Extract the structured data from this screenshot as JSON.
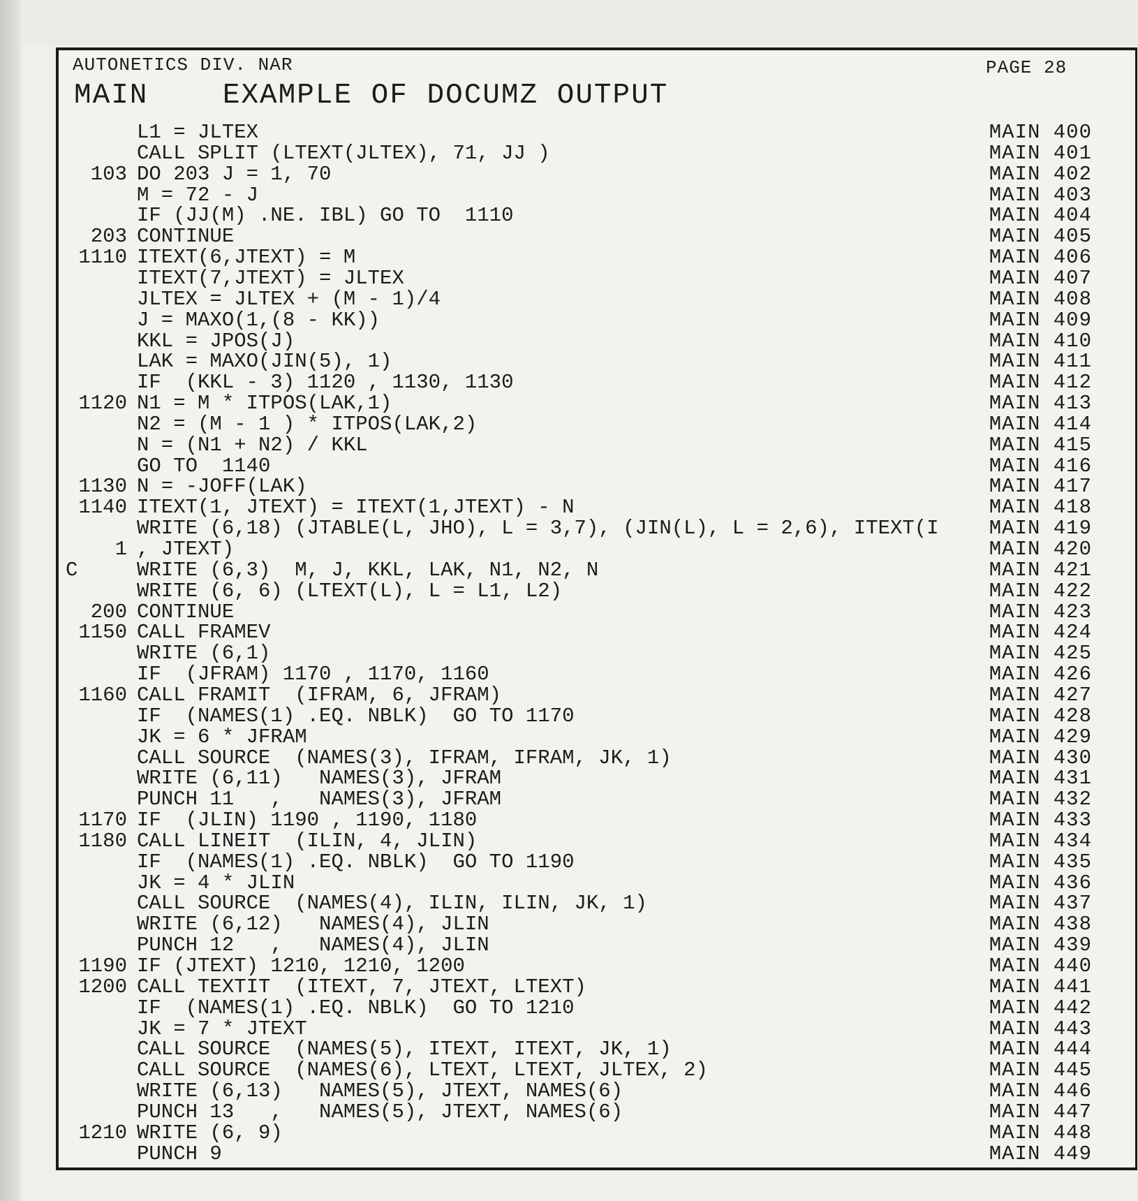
{
  "header": {
    "org": "AUTONETICS DIV. NAR",
    "program": "MAIN",
    "title": "EXAMPLE OF DOCUMZ OUTPUT",
    "page_label": "PAGE",
    "page_number": "28"
  },
  "lines": [
    {
      "label": "",
      "stmt": "L1 = JLTEX",
      "seq": "MAIN 400"
    },
    {
      "label": "",
      "stmt": "CALL SPLIT (LTEXT(JLTEX), 71, JJ )",
      "seq": "MAIN 401"
    },
    {
      "label": "103",
      "stmt": "DO 203 J = 1, 70",
      "seq": "MAIN 402"
    },
    {
      "label": "",
      "stmt": "M = 72 - J",
      "seq": "MAIN 403"
    },
    {
      "label": "",
      "stmt": "IF (JJ(M) .NE. IBL) GO TO  1110",
      "seq": "MAIN 404"
    },
    {
      "label": "203",
      "stmt": "CONTINUE",
      "seq": "MAIN 405"
    },
    {
      "label": "1110",
      "stmt": "ITEXT(6,JTEXT) = M",
      "seq": "MAIN 406"
    },
    {
      "label": "",
      "stmt": "ITEXT(7,JTEXT) = JLTEX",
      "seq": "MAIN 407"
    },
    {
      "label": "",
      "stmt": "JLTEX = JLTEX + (M - 1)/4",
      "seq": "MAIN 408"
    },
    {
      "label": "",
      "stmt": "J = MAXO(1,(8 - KK))",
      "seq": "MAIN 409"
    },
    {
      "label": "",
      "stmt": "KKL = JPOS(J)",
      "seq": "MAIN 410"
    },
    {
      "label": "",
      "stmt": "LAK = MAXO(JIN(5), 1)",
      "seq": "MAIN 411"
    },
    {
      "label": "",
      "stmt": "IF  (KKL - 3) 1120 , 1130, 1130",
      "seq": "MAIN 412"
    },
    {
      "label": "1120",
      "stmt": "N1 = M * ITPOS(LAK,1)",
      "seq": "MAIN 413"
    },
    {
      "label": "",
      "stmt": "N2 = (M - 1 ) * ITPOS(LAK,2)",
      "seq": "MAIN 414"
    },
    {
      "label": "",
      "stmt": "N = (N1 + N2) / KKL",
      "seq": "MAIN 415"
    },
    {
      "label": "",
      "stmt": "GO TO  1140",
      "seq": "MAIN 416"
    },
    {
      "label": "1130",
      "stmt": "N = -JOFF(LAK)",
      "seq": "MAIN 417"
    },
    {
      "label": "1140",
      "stmt": "ITEXT(1, JTEXT) = ITEXT(1,JTEXT) - N",
      "seq": "MAIN 418"
    },
    {
      "label": "",
      "stmt": "WRITE (6,18) (JTABLE(L, JHO), L = 3,7), (JIN(L), L = 2,6), ITEXT(I",
      "seq": "MAIN 419"
    },
    {
      "label": "1",
      "stmt": ", JTEXT)",
      "seq": "MAIN 420"
    },
    {
      "label": "",
      "comment": "C",
      "stmt": "WRITE (6,3)  M, J, KKL, LAK, N1, N2, N",
      "seq": "MAIN 421"
    },
    {
      "label": "",
      "stmt": "WRITE (6, 6) (LTEXT(L), L = L1, L2)",
      "seq": "MAIN 422"
    },
    {
      "label": "200",
      "stmt": "CONTINUE",
      "seq": "MAIN 423"
    },
    {
      "label": "1150",
      "stmt": "CALL FRAMEV",
      "seq": "MAIN 424"
    },
    {
      "label": "",
      "stmt": "WRITE (6,1)",
      "seq": "MAIN 425"
    },
    {
      "label": "",
      "stmt": "IF  (JFRAM) 1170 , 1170, 1160",
      "seq": "MAIN 426"
    },
    {
      "label": "1160",
      "stmt": "CALL FRAMIT  (IFRAM, 6, JFRAM)",
      "seq": "MAIN 427"
    },
    {
      "label": "",
      "stmt": "IF  (NAMES(1) .EQ. NBLK)  GO TO 1170",
      "seq": "MAIN 428"
    },
    {
      "label": "",
      "stmt": "JK = 6 * JFRAM",
      "seq": "MAIN 429"
    },
    {
      "label": "",
      "stmt": "CALL SOURCE  (NAMES(3), IFRAM, IFRAM, JK, 1)",
      "seq": "MAIN 430"
    },
    {
      "label": "",
      "stmt": "WRITE (6,11)   NAMES(3), JFRAM",
      "seq": "MAIN 431"
    },
    {
      "label": "",
      "stmt": "PUNCH 11   ,   NAMES(3), JFRAM",
      "seq": "MAIN 432"
    },
    {
      "label": "1170",
      "stmt": "IF  (JLIN) 1190 , 1190, 1180",
      "seq": "MAIN 433"
    },
    {
      "label": "1180",
      "stmt": "CALL LINEIT  (ILIN, 4, JLIN)",
      "seq": "MAIN 434"
    },
    {
      "label": "",
      "stmt": "IF  (NAMES(1) .EQ. NBLK)  GO TO 1190",
      "seq": "MAIN 435"
    },
    {
      "label": "",
      "stmt": "JK = 4 * JLIN",
      "seq": "MAIN 436"
    },
    {
      "label": "",
      "stmt": "CALL SOURCE  (NAMES(4), ILIN, ILIN, JK, 1)",
      "seq": "MAIN 437"
    },
    {
      "label": "",
      "stmt": "WRITE (6,12)   NAMES(4), JLIN",
      "seq": "MAIN 438"
    },
    {
      "label": "",
      "stmt": "PUNCH 12   ,   NAMES(4), JLIN",
      "seq": "MAIN 439"
    },
    {
      "label": "1190",
      "stmt": "IF (JTEXT) 1210, 1210, 1200",
      "seq": "MAIN 440"
    },
    {
      "label": "1200",
      "stmt": "CALL TEXTIT  (ITEXT, 7, JTEXT, LTEXT)",
      "seq": "MAIN 441"
    },
    {
      "label": "",
      "stmt": "IF  (NAMES(1) .EQ. NBLK)  GO TO 1210",
      "seq": "MAIN 442"
    },
    {
      "label": "",
      "stmt": "JK = 7 * JTEXT",
      "seq": "MAIN 443"
    },
    {
      "label": "",
      "stmt": "CALL SOURCE  (NAMES(5), ITEXT, ITEXT, JK, 1)",
      "seq": "MAIN 444"
    },
    {
      "label": "",
      "stmt": "CALL SOURCE  (NAMES(6), LTEXT, LTEXT, JLTEX, 2)",
      "seq": "MAIN 445"
    },
    {
      "label": "",
      "stmt": "WRITE (6,13)   NAMES(5), JTEXT, NAMES(6)",
      "seq": "MAIN 446"
    },
    {
      "label": "",
      "stmt": "PUNCH 13   ,   NAMES(5), JTEXT, NAMES(6)",
      "seq": "MAIN 447"
    },
    {
      "label": "1210",
      "stmt": "WRITE (6, 9)",
      "seq": "MAIN 448"
    },
    {
      "label": "",
      "stmt": "PUNCH 9",
      "seq": "MAIN 449"
    }
  ]
}
